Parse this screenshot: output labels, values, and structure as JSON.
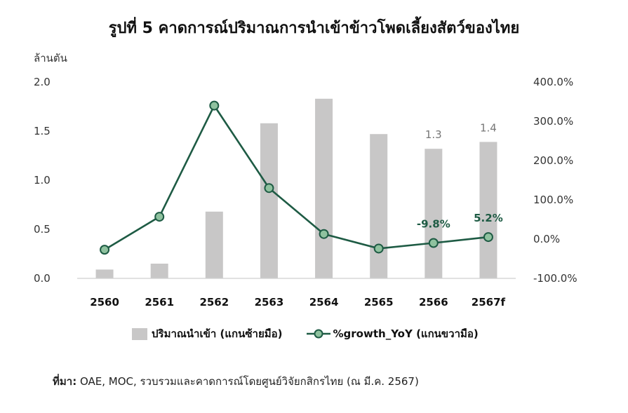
{
  "title": "รูปที่ 5 คาดการณ์ปริมาณการนำเข้าข้าวโพดเลี้ยงสัตว์ของไทย",
  "source_label": "ที่มา:",
  "source_text": " OAE, MOC, รวบรวมและคาดการณ์โดยศูนย์วิจัยกสิกรไทย (ณ มี.ค. 2567)",
  "colors": {
    "bar": "#c8c7c7",
    "line": "#1e5b44",
    "marker_fill": "#8fc29f"
  },
  "chart_data": {
    "type": "bar",
    "categories": [
      "2560",
      "2561",
      "2562",
      "2563",
      "2564",
      "2565",
      "2566",
      "2567f"
    ],
    "ylabel_left": "ล้านตัน",
    "left_axis": {
      "ylim": [
        0,
        2.0
      ],
      "ticks": [
        "0.0",
        "0.5",
        "1.0",
        "1.5",
        "2.0"
      ]
    },
    "right_axis": {
      "ylim": [
        -100,
        400
      ],
      "ticks": [
        "-100.0%",
        "0.0%",
        "100.0%",
        "200.0%",
        "300.0%",
        "400.0%"
      ]
    },
    "series": [
      {
        "name": "ปริมาณนำเข้า (แกนซ้ายมือ)",
        "type": "bar",
        "axis": "left",
        "values": [
          0.09,
          0.15,
          0.68,
          1.58,
          1.83,
          1.47,
          1.32,
          1.39
        ]
      },
      {
        "name": "%growth_YoY (แกนขวามือ)",
        "type": "line",
        "axis": "right",
        "values": [
          -27,
          57,
          340,
          130,
          13,
          -24,
          -9.8,
          5.2
        ]
      }
    ],
    "bar_labels": {
      "6": "1.3",
      "7": "1.4"
    },
    "line_labels": {
      "6": "-9.8%",
      "7": "5.2%"
    },
    "grid": false,
    "legend_position": "bottom"
  }
}
